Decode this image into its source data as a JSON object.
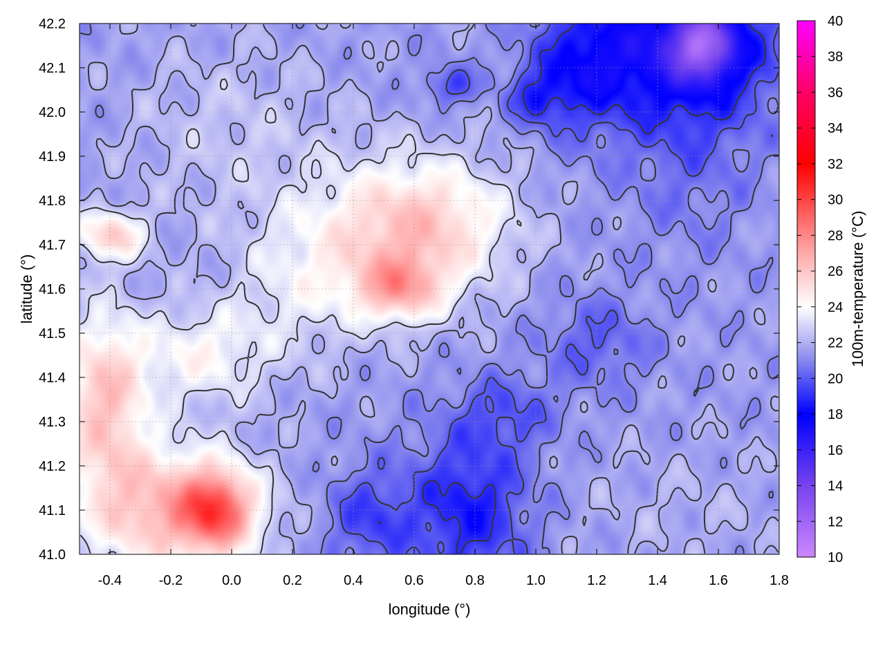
{
  "chart_data": {
    "type": "heatmap",
    "title": "",
    "xlabel": "longitude (°)",
    "ylabel": "latitude (°)",
    "colorbar_label": "100m-temperature (°C)",
    "xlim": [
      -0.5,
      1.8
    ],
    "ylim": [
      41.0,
      42.2
    ],
    "zlim": [
      10,
      40
    ],
    "x_ticks": [
      "-0.4",
      "-0.2",
      "0.0",
      "0.2",
      "0.4",
      "0.6",
      "0.8",
      "1.0",
      "1.2",
      "1.4",
      "1.6",
      "1.8"
    ],
    "x_tick_values": [
      -0.4,
      -0.2,
      0.0,
      0.2,
      0.4,
      0.6,
      0.8,
      1.0,
      1.2,
      1.4,
      1.6,
      1.8
    ],
    "y_ticks": [
      "41.0",
      "41.1",
      "41.2",
      "41.3",
      "41.4",
      "41.5",
      "41.6",
      "41.7",
      "41.8",
      "41.9",
      "42.0",
      "42.1",
      "42.2"
    ],
    "y_tick_values": [
      41.0,
      41.1,
      41.2,
      41.3,
      41.4,
      41.5,
      41.6,
      41.7,
      41.8,
      41.9,
      42.0,
      42.1,
      42.2
    ],
    "colorbar_ticks": [
      "10",
      "12",
      "14",
      "16",
      "18",
      "20",
      "22",
      "24",
      "26",
      "28",
      "30",
      "32",
      "34",
      "36",
      "38",
      "40"
    ],
    "colorbar_tick_values": [
      10,
      12,
      14,
      16,
      18,
      20,
      22,
      24,
      26,
      28,
      30,
      32,
      34,
      36,
      38,
      40
    ],
    "colormap": [
      {
        "value": 10,
        "color": "#cc88ff"
      },
      {
        "value": 14,
        "color": "#7744ee"
      },
      {
        "value": 18,
        "color": "#0000ff"
      },
      {
        "value": 21,
        "color": "#8888ee"
      },
      {
        "value": 24,
        "color": "#ffffff"
      },
      {
        "value": 27,
        "color": "#ffaaaa"
      },
      {
        "value": 32,
        "color": "#ff0000"
      },
      {
        "value": 36,
        "color": "#ff0066"
      },
      {
        "value": 40,
        "color": "#ff00ff"
      }
    ],
    "grid": true,
    "contours": true,
    "field": {
      "background": 21.5,
      "components": [
        {
          "lon": 1.5,
          "lat": 42.15,
          "temp": 17.0,
          "sx": 0.2,
          "sy": 0.12
        },
        {
          "lon": 1.55,
          "lat": 42.15,
          "temp": 16.0,
          "sx": 0.07,
          "sy": 0.05
        },
        {
          "lon": 1.15,
          "lat": 42.1,
          "temp": 18.5,
          "sx": 0.12,
          "sy": 0.1
        },
        {
          "lon": 0.72,
          "lat": 42.06,
          "temp": 19.5,
          "sx": 0.06,
          "sy": 0.03
        },
        {
          "lon": 1.0,
          "lat": 42.03,
          "temp": 19.5,
          "sx": 0.06,
          "sy": 0.04
        },
        {
          "lon": 0.78,
          "lat": 41.1,
          "temp": 18.5,
          "sx": 0.14,
          "sy": 0.12
        },
        {
          "lon": 0.45,
          "lat": 41.08,
          "temp": 19.5,
          "sx": 0.1,
          "sy": 0.08
        },
        {
          "lon": 0.9,
          "lat": 41.32,
          "temp": 20.0,
          "sx": 0.12,
          "sy": 0.06
        },
        {
          "lon": 1.2,
          "lat": 41.48,
          "temp": 20.0,
          "sx": 0.12,
          "sy": 0.07
        },
        {
          "lon": 1.5,
          "lat": 41.9,
          "temp": 20.5,
          "sx": 0.15,
          "sy": 0.15
        },
        {
          "lon": 0.55,
          "lat": 41.6,
          "temp": 25.5,
          "sx": 0.1,
          "sy": 0.05
        },
        {
          "lon": 0.5,
          "lat": 41.72,
          "temp": 24.5,
          "sx": 0.2,
          "sy": 0.12
        },
        {
          "lon": 0.7,
          "lat": 41.75,
          "temp": 24.0,
          "sx": 0.18,
          "sy": 0.1
        },
        {
          "lon": -0.2,
          "lat": 41.1,
          "temp": 26.5,
          "sx": 0.2,
          "sy": 0.1
        },
        {
          "lon": -0.42,
          "lat": 41.35,
          "temp": 26.0,
          "sx": 0.1,
          "sy": 0.14
        },
        {
          "lon": -0.4,
          "lat": 41.72,
          "temp": 25.5,
          "sx": 0.08,
          "sy": 0.04
        },
        {
          "lon": -0.05,
          "lat": 41.1,
          "temp": 27.0,
          "sx": 0.08,
          "sy": 0.06
        },
        {
          "lon": -0.1,
          "lat": 41.45,
          "temp": 24.0,
          "sx": 0.15,
          "sy": 0.08
        },
        {
          "lon": 1.5,
          "lat": 41.1,
          "temp": 22.0,
          "sx": 0.3,
          "sy": 0.1
        },
        {
          "lon": 0.0,
          "lat": 41.95,
          "temp": 22.5,
          "sx": 0.25,
          "sy": 0.15
        },
        {
          "lon": 0.2,
          "lat": 41.6,
          "temp": 23.0,
          "sx": 0.15,
          "sy": 0.12
        }
      ]
    }
  }
}
